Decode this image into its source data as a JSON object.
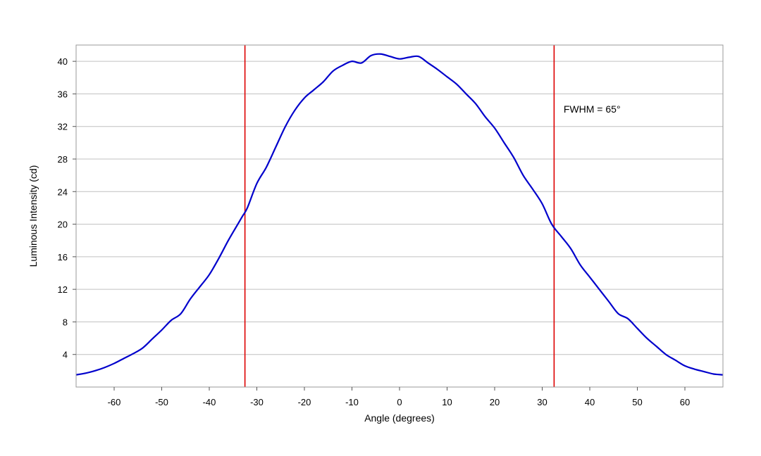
{
  "chart_data": {
    "type": "line",
    "title": "",
    "xlabel": "Angle (degrees)",
    "ylabel": "Luminous Intensity (cd)",
    "xlim": [
      -68,
      68
    ],
    "ylim": [
      0,
      42
    ],
    "xticks": [
      -60,
      -50,
      -40,
      -30,
      -20,
      -10,
      0,
      10,
      20,
      30,
      40,
      50,
      60
    ],
    "yticks": [
      4,
      8,
      12,
      16,
      20,
      24,
      28,
      32,
      36,
      40
    ],
    "grid": "horizontal",
    "legend": "none",
    "series": [
      {
        "color": "#0000cc",
        "x": [
          -68,
          -66,
          -64,
          -62,
          -60,
          -58,
          -56,
          -54,
          -52,
          -50,
          -48,
          -46,
          -44,
          -42,
          -40,
          -38,
          -36,
          -34,
          -33,
          -32,
          -30,
          -28,
          -26,
          -24,
          -22,
          -20,
          -18,
          -16,
          -14,
          -12,
          -10,
          -8,
          -6,
          -4,
          -2,
          0,
          2,
          4,
          6,
          8,
          10,
          12,
          14,
          16,
          18,
          20,
          22,
          24,
          26,
          28,
          30,
          32,
          34,
          36,
          38,
          40,
          42,
          44,
          46,
          48,
          50,
          52,
          54,
          56,
          58,
          60,
          62,
          64,
          66,
          68
        ],
        "y": [
          1.5,
          1.7,
          2.0,
          2.4,
          2.9,
          3.5,
          4.1,
          4.8,
          5.9,
          7.0,
          8.2,
          9.0,
          10.8,
          12.3,
          13.8,
          15.8,
          18.0,
          20.0,
          21.0,
          22.0,
          25.0,
          27.0,
          29.5,
          32.0,
          34.0,
          35.5,
          36.5,
          37.5,
          38.8,
          39.5,
          40.0,
          39.8,
          40.7,
          40.9,
          40.6,
          40.3,
          40.5,
          40.6,
          39.8,
          39.0,
          38.1,
          37.2,
          36.0,
          34.8,
          33.2,
          31.8,
          30.0,
          28.2,
          26.0,
          24.3,
          22.5,
          20.0,
          18.5,
          17.0,
          15.0,
          13.5,
          12.0,
          10.5,
          9.0,
          8.4,
          7.2,
          6.0,
          5.0,
          4.0,
          3.3,
          2.6,
          2.2,
          1.9,
          1.6,
          1.5
        ]
      }
    ],
    "vlines": [
      {
        "x": -32.5,
        "color": "#dd0000"
      },
      {
        "x": 32.5,
        "color": "#dd0000"
      }
    ],
    "annotations": [
      {
        "text": "FWHM = 65°",
        "x": 34.5,
        "y": 33.7
      }
    ],
    "colors": {
      "grid": "#c0c0c0",
      "frame": "#999999"
    }
  }
}
